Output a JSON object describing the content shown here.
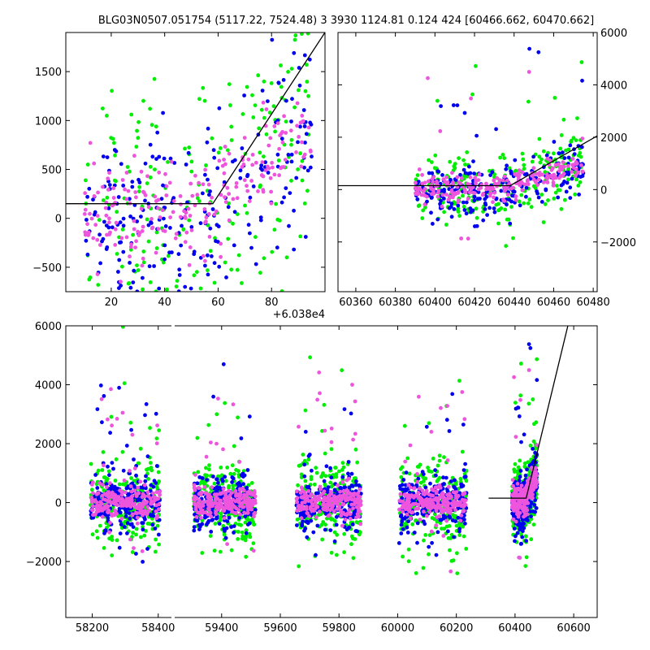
{
  "title": "BLG03N0507.051754 (5117.22, 7524.48)    3 3930 1124.81 0.124 424 [60466.662, 60470.662]",
  "colors": {
    "green": "#00ee00",
    "blue": "#0000ee",
    "pink": "#ee55dd",
    "model": "#000000"
  },
  "chart_data": [
    {
      "type": "scatter",
      "panel": "top-left",
      "xlim": [
        60383.0,
        60480.0
      ],
      "ylim": [
        -750,
        1900
      ],
      "x_offset_label": "+6.038e4",
      "x_ticks": [
        20,
        40,
        60,
        80
      ],
      "y_ticks": [
        -500,
        0,
        500,
        1000,
        1500
      ],
      "model": [
        [
          60383.0,
          150
        ],
        [
          60438.0,
          150
        ],
        [
          60480.0,
          1900
        ]
      ]
    },
    {
      "type": "scatter",
      "panel": "top-right",
      "xlim": [
        60351.0,
        60482.0
      ],
      "ylim": [
        -3900,
        6000
      ],
      "x_ticks": [
        60360,
        60380,
        60400,
        60420,
        60440,
        60460,
        60480
      ],
      "y_ticks": [
        -2000,
        0,
        2000,
        4000,
        6000
      ],
      "model": [
        [
          60351.0,
          150
        ],
        [
          60438.0,
          150
        ],
        [
          60482.0,
          2050
        ]
      ]
    },
    {
      "type": "scatter",
      "panel": "bottom",
      "xlim": [
        58120,
        60680
      ],
      "ylim": [
        -3900,
        6000
      ],
      "x_ticks": [
        58200,
        58400,
        59400,
        59600,
        59800,
        60000,
        60200,
        60400,
        60600
      ],
      "y_ticks": [
        -2000,
        0,
        2000,
        4000,
        6000
      ],
      "model": [
        [
          60310,
          150
        ],
        [
          60438,
          150
        ],
        [
          60580,
          6000
        ]
      ]
    }
  ]
}
